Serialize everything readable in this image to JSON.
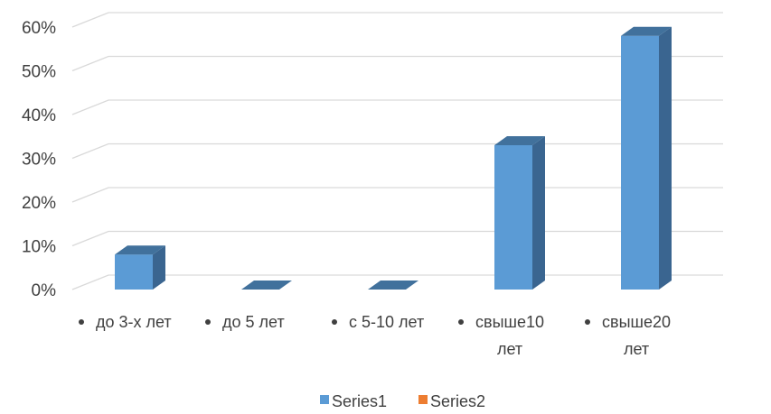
{
  "chart_data": {
    "type": "bar",
    "title": "",
    "xlabel": "",
    "ylabel": "",
    "categories": [
      [
        "до 3-х лет"
      ],
      [
        "до 5 лет"
      ],
      [
        "с 5-10 лет"
      ],
      [
        "свыше10",
        "лет"
      ],
      [
        "свыше20",
        "лет"
      ]
    ],
    "series": [
      {
        "name": "Series1",
        "values": [
          8,
          0,
          0,
          33,
          58
        ]
      },
      {
        "name": "Series2",
        "values": [
          null,
          null,
          null,
          null,
          null
        ]
      }
    ],
    "y_ticks": [
      "0%",
      "10%",
      "20%",
      "30%",
      "40%",
      "50%",
      "60%"
    ],
    "ylim": [
      0,
      60
    ],
    "grid": true,
    "legend_position": "bottom",
    "colors": {
      "series1_front": "#5b9bd5",
      "series1_top": "#41719c",
      "series1_side": "#3a6590",
      "series2": "#ed7d31"
    }
  }
}
